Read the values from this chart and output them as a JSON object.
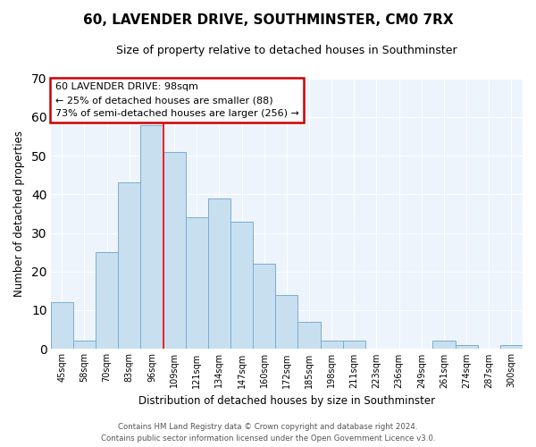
{
  "title": "60, LAVENDER DRIVE, SOUTHMINSTER, CM0 7RX",
  "subtitle": "Size of property relative to detached houses in Southminster",
  "xlabel": "Distribution of detached houses by size in Southminster",
  "ylabel": "Number of detached properties",
  "bar_labels": [
    "45sqm",
    "58sqm",
    "70sqm",
    "83sqm",
    "96sqm",
    "109sqm",
    "121sqm",
    "134sqm",
    "147sqm",
    "160sqm",
    "172sqm",
    "185sqm",
    "198sqm",
    "211sqm",
    "223sqm",
    "236sqm",
    "249sqm",
    "261sqm",
    "274sqm",
    "287sqm",
    "300sqm"
  ],
  "bar_values": [
    12,
    2,
    25,
    43,
    58,
    51,
    34,
    39,
    33,
    22,
    14,
    7,
    2,
    2,
    0,
    0,
    0,
    2,
    1,
    0,
    1
  ],
  "bar_color": "#c8dff0",
  "bar_edge_color": "#7aaed0",
  "red_line_index": 4,
  "ylim": [
    0,
    70
  ],
  "yticks": [
    0,
    10,
    20,
    30,
    40,
    50,
    60,
    70
  ],
  "annotation_title": "60 LAVENDER DRIVE: 98sqm",
  "annotation_line1": "← 25% of detached houses are smaller (88)",
  "annotation_line2": "73% of semi-detached houses are larger (256) →",
  "annotation_box_color": "#ffffff",
  "annotation_box_edge": "#cc0000",
  "footer_line1": "Contains HM Land Registry data © Crown copyright and database right 2024.",
  "footer_line2": "Contains public sector information licensed under the Open Government Licence v3.0.",
  "background_color": "#ffffff",
  "plot_bg_color": "#eef4fb",
  "grid_color": "#ffffff",
  "title_fontsize": 11,
  "subtitle_fontsize": 9
}
